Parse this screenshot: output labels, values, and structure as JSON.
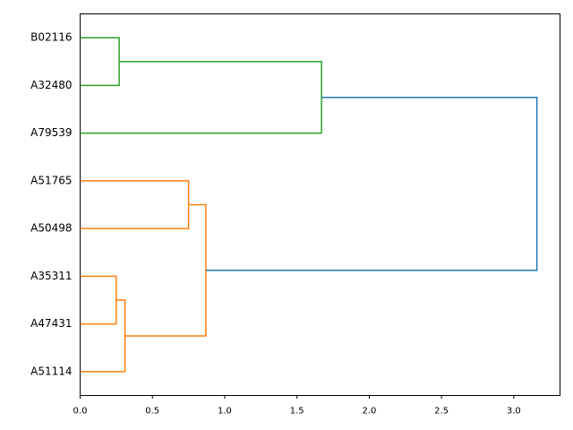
{
  "chart_data": {
    "type": "dendrogram",
    "orientation": "left",
    "xlim": [
      0,
      3.32
    ],
    "xticks": [
      {
        "value": 0,
        "label": "0.0"
      },
      {
        "value": 0.5,
        "label": "0.5"
      },
      {
        "value": 1,
        "label": "1.0"
      },
      {
        "value": 1.5,
        "label": "1.5"
      },
      {
        "value": 2,
        "label": "2.0"
      },
      {
        "value": 2.5,
        "label": "2.5"
      },
      {
        "value": 3,
        "label": "3.0"
      }
    ],
    "tree": {
      "height": 3.16,
      "color": "#1f77b4",
      "children": [
        {
          "height": 1.67,
          "color": "#2ca02c",
          "children": [
            {
              "height": 0.27,
              "color": "#2ca02c",
              "children": [
                "B02116",
                "A32480"
              ]
            },
            "A79539"
          ]
        },
        {
          "height": 0.87,
          "color": "#ff7f0e",
          "children": [
            {
              "height": 0.75,
              "color": "#ff7f0e",
              "children": [
                "A51765",
                "A50498"
              ]
            },
            {
              "height": 0.31,
              "color": "#ff7f0e",
              "children": [
                {
                  "height": 0.25,
                  "color": "#ff7f0e",
                  "children": [
                    "A35311",
                    "A47431"
                  ]
                },
                "A51114"
              ]
            }
          ]
        }
      ]
    }
  }
}
